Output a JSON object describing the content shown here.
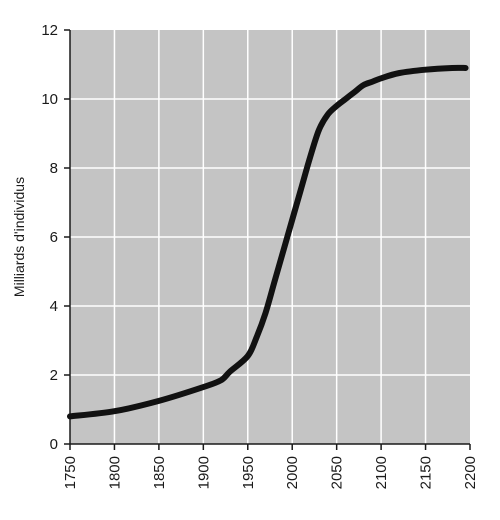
{
  "chart_data": {
    "type": "line",
    "title": "",
    "xlabel": "",
    "ylabel": "Milliards d'individus",
    "xlim": [
      1750,
      2200
    ],
    "ylim": [
      0,
      12
    ],
    "x_ticks": [
      1750,
      1800,
      1850,
      1900,
      1950,
      2000,
      2050,
      2100,
      2150,
      2200
    ],
    "y_ticks": [
      0,
      2,
      4,
      6,
      8,
      10,
      12
    ],
    "grid": true,
    "legend": "none",
    "colors": {
      "background": "#c4c4c4",
      "grid": "#ffffff",
      "line": "#111111",
      "axis": "#1a1a1a"
    },
    "series": [
      {
        "x": [
          1750,
          1800,
          1850,
          1900,
          1920,
          1930,
          1950,
          1960,
          1970,
          1980,
          1990,
          2000,
          2010,
          2020,
          2030,
          2040,
          2050,
          2060,
          2070,
          2080,
          2090,
          2100,
          2120,
          2150,
          2180,
          2195
        ],
        "y": [
          0.8,
          0.95,
          1.25,
          1.65,
          1.85,
          2.1,
          2.55,
          3.1,
          3.8,
          4.7,
          5.6,
          6.5,
          7.4,
          8.3,
          9.1,
          9.55,
          9.8,
          10.0,
          10.2,
          10.4,
          10.5,
          10.6,
          10.75,
          10.85,
          10.9,
          10.9
        ]
      }
    ]
  }
}
